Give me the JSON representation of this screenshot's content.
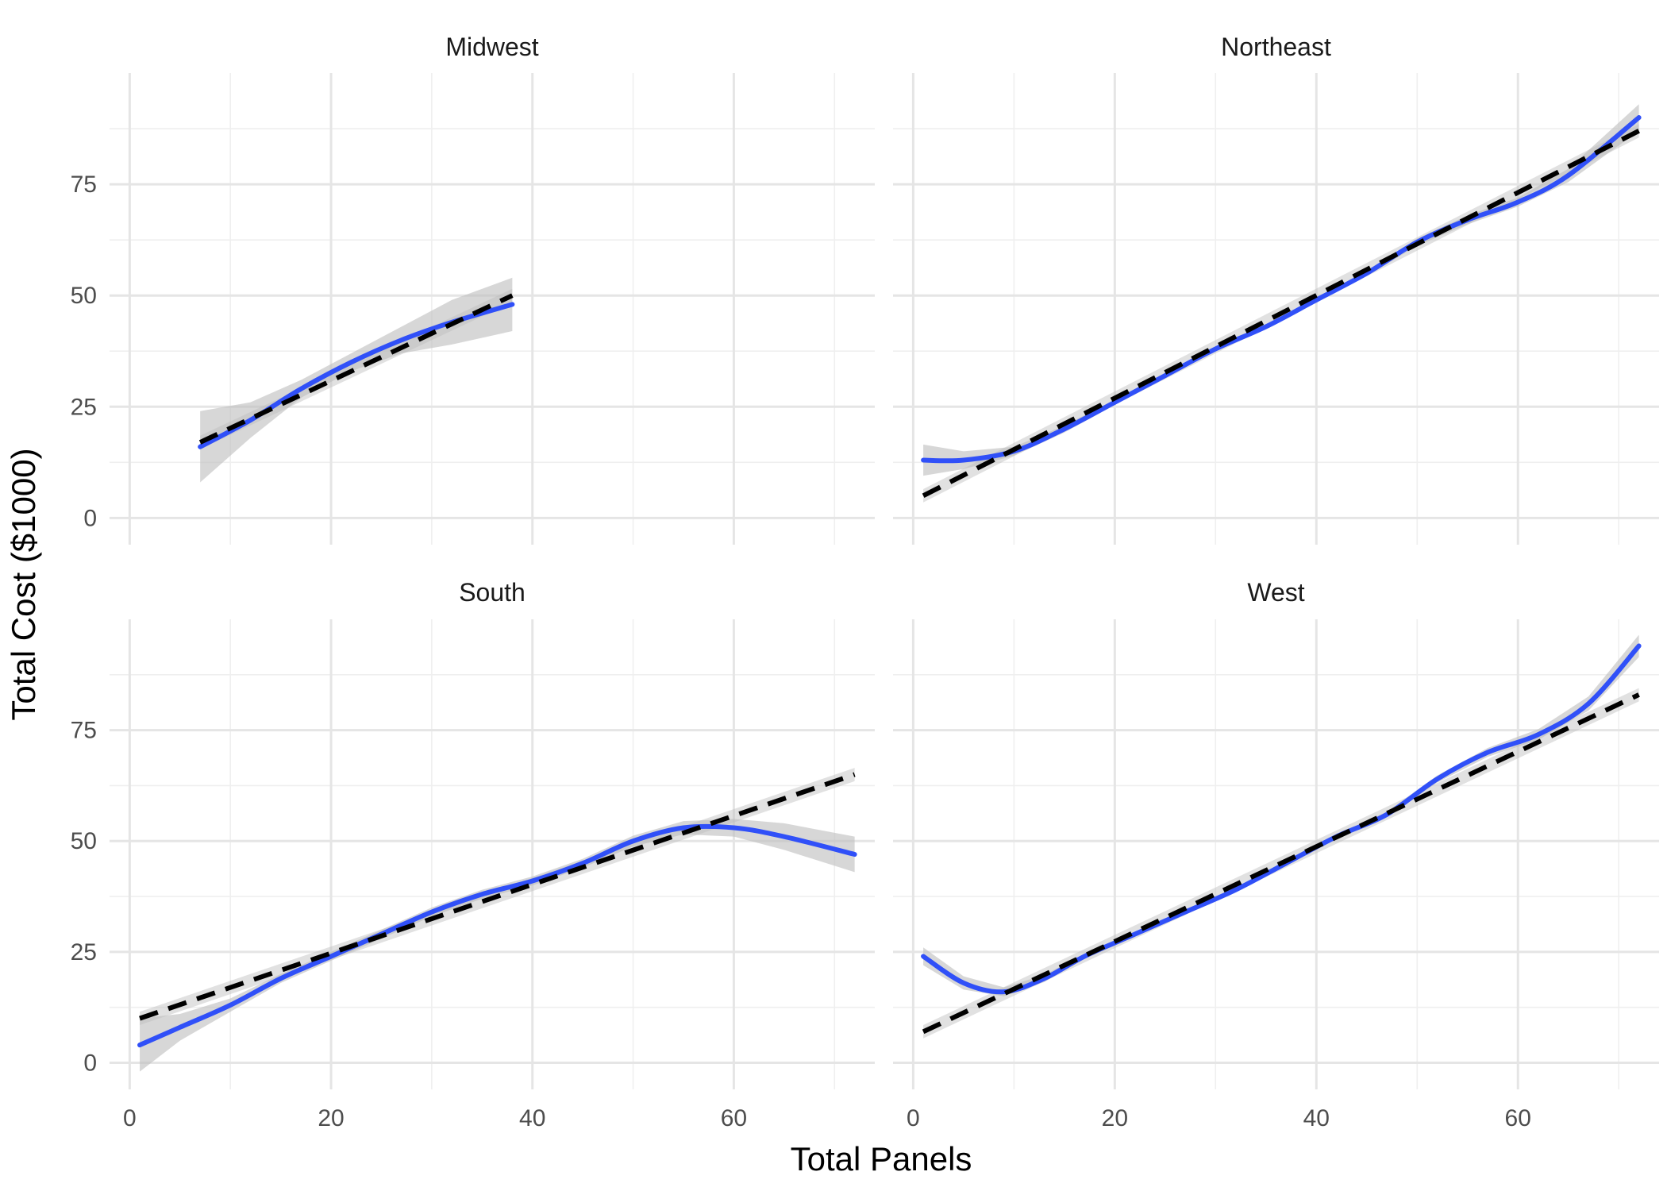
{
  "chart_data": {
    "type": "line",
    "xlabel": "Total Panels",
    "ylabel": "Total Cost ($1000)",
    "xlim": [
      -2,
      74
    ],
    "ylim": [
      -6,
      100
    ],
    "x_ticks": [
      0,
      20,
      40,
      60
    ],
    "y_ticks": [
      0,
      25,
      50,
      75
    ],
    "grid": true,
    "colors": {
      "smooth": "#3050f8",
      "linear": "#000000",
      "band": "#bdbdbd",
      "grid_major": "#e5e5e5",
      "grid_minor": "#efefef"
    },
    "panels": [
      {
        "title": "Midwest",
        "linear": {
          "x": [
            7,
            38
          ],
          "y": [
            17,
            50
          ]
        },
        "smooth": {
          "x": [
            7,
            12,
            17,
            22,
            27,
            32,
            38
          ],
          "y": [
            16,
            22,
            29,
            35,
            40,
            44,
            48
          ]
        },
        "band_halfwidth": [
          8,
          4,
          2,
          2,
          3,
          5,
          6
        ]
      },
      {
        "title": "Northeast",
        "linear": {
          "x": [
            1,
            72
          ],
          "y": [
            5,
            87
          ]
        },
        "smooth": {
          "x": [
            1,
            5,
            10,
            15,
            20,
            25,
            30,
            35,
            40,
            45,
            50,
            55,
            60,
            65,
            72
          ],
          "y": [
            13,
            13,
            15,
            20,
            26,
            32,
            38,
            43,
            49,
            55,
            62,
            67,
            71,
            77,
            90
          ]
        },
        "band_halfwidth": [
          3.5,
          2,
          1,
          0.8,
          0.6,
          0.5,
          0.5,
          0.5,
          0.5,
          0.6,
          0.8,
          1,
          1,
          1.5,
          3
        ]
      },
      {
        "title": "South",
        "linear": {
          "x": [
            1,
            72
          ],
          "y": [
            10,
            65
          ]
        },
        "smooth": {
          "x": [
            1,
            5,
            10,
            15,
            20,
            25,
            30,
            35,
            40,
            45,
            50,
            55,
            60,
            65,
            72
          ],
          "y": [
            4,
            8,
            13,
            19,
            24,
            29,
            34,
            38,
            41,
            45,
            50,
            53,
            53,
            51,
            47
          ]
        },
        "band_halfwidth": [
          6,
          3,
          1.5,
          1,
          1,
          1,
          1,
          1,
          1,
          1,
          1.2,
          1.5,
          2,
          3,
          4
        ]
      },
      {
        "title": "West",
        "linear": {
          "x": [
            1,
            72
          ],
          "y": [
            7,
            83
          ]
        },
        "smooth": {
          "x": [
            1,
            5,
            9,
            13,
            17,
            22,
            27,
            32,
            37,
            42,
            47,
            52,
            57,
            62,
            67,
            72
          ],
          "y": [
            24,
            18,
            16,
            19,
            24,
            29,
            34,
            39,
            45,
            51,
            56,
            64,
            70,
            74,
            81,
            94
          ]
        },
        "band_halfwidth": [
          2,
          1.5,
          1,
          0.8,
          0.6,
          0.5,
          0.5,
          0.5,
          0.5,
          0.5,
          0.6,
          0.8,
          1,
          1.2,
          1.6,
          2.5
        ]
      }
    ]
  }
}
